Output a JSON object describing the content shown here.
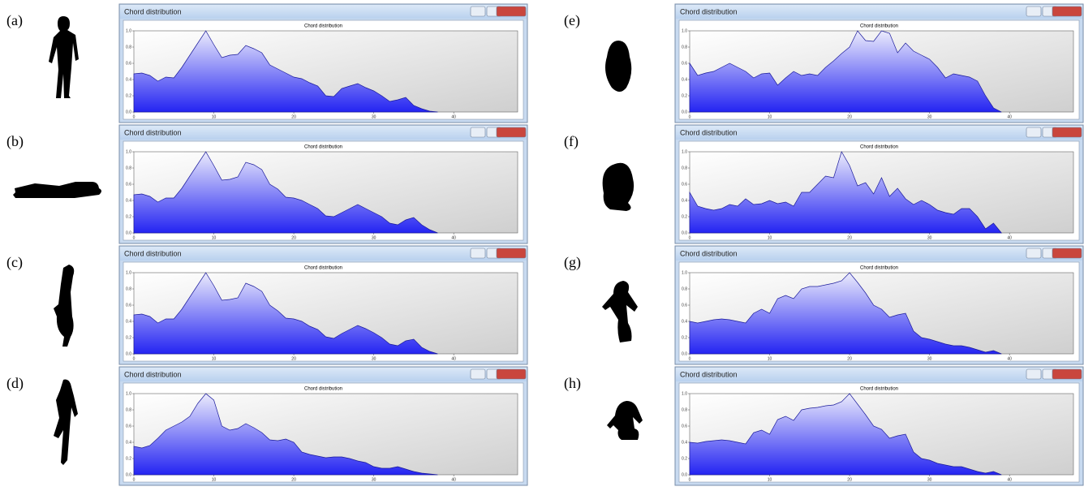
{
  "chart_data": [
    {
      "type": "area",
      "panel_label": "(a)",
      "window_title": "Chord distribution",
      "title": "Chord distribution",
      "color": "#2424f2",
      "x": [
        0,
        1,
        2,
        3,
        4,
        5,
        6,
        7,
        8,
        9,
        10,
        11,
        12,
        13,
        14,
        15,
        16,
        17,
        18,
        19,
        20,
        21,
        22,
        23,
        24,
        25,
        26,
        27,
        28,
        29,
        30,
        31,
        32,
        33,
        34,
        35,
        36,
        37,
        38
      ],
      "values": [
        0.47,
        0.48,
        0.45,
        0.38,
        0.43,
        0.42,
        0.55,
        0.7,
        0.85,
        1.0,
        0.83,
        0.67,
        0.7,
        0.71,
        0.82,
        0.78,
        0.73,
        0.58,
        0.53,
        0.48,
        0.43,
        0.41,
        0.36,
        0.32,
        0.2,
        0.19,
        0.29,
        0.32,
        0.35,
        0.3,
        0.26,
        0.2,
        0.13,
        0.15,
        0.18,
        0.08,
        0.04,
        0.01,
        0
      ],
      "xlim": [
        0,
        48
      ],
      "ylim": [
        0,
        1
      ],
      "xticks": [
        0,
        10,
        20,
        30,
        40
      ],
      "yticks": [
        {
          "value": 0,
          "label": "0.0"
        },
        {
          "value": 0.2,
          "label": "0.2"
        },
        {
          "value": 0.4,
          "label": "0.4"
        },
        {
          "value": 0.6,
          "label": "0.6"
        },
        {
          "value": 0.8,
          "label": "0.8"
        },
        {
          "value": 1,
          "label": "1.0"
        }
      ]
    },
    {
      "type": "area",
      "panel_label": "(b)",
      "window_title": "Chord distribution",
      "title": "Chord distribution",
      "color": "#2424f2",
      "x": [
        0,
        1,
        2,
        3,
        4,
        5,
        6,
        7,
        8,
        9,
        10,
        11,
        12,
        13,
        14,
        15,
        16,
        17,
        18,
        19,
        20,
        21,
        22,
        23,
        24,
        25,
        26,
        27,
        28,
        29,
        30,
        31,
        32,
        33,
        34,
        35,
        36,
        37,
        38
      ],
      "values": [
        0.47,
        0.48,
        0.45,
        0.38,
        0.43,
        0.43,
        0.55,
        0.7,
        0.85,
        1.0,
        0.83,
        0.65,
        0.66,
        0.69,
        0.87,
        0.84,
        0.78,
        0.6,
        0.54,
        0.44,
        0.43,
        0.4,
        0.35,
        0.3,
        0.21,
        0.2,
        0.25,
        0.3,
        0.35,
        0.3,
        0.25,
        0.2,
        0.12,
        0.1,
        0.16,
        0.19,
        0.1,
        0.04,
        0
      ],
      "xlim": [
        0,
        48
      ],
      "ylim": [
        0,
        1
      ],
      "xticks": [
        0,
        10,
        20,
        30,
        40
      ],
      "yticks": [
        {
          "value": 0,
          "label": "0.0"
        },
        {
          "value": 0.2,
          "label": "0.2"
        },
        {
          "value": 0.4,
          "label": "0.4"
        },
        {
          "value": 0.6,
          "label": "0.6"
        },
        {
          "value": 0.8,
          "label": "0.8"
        },
        {
          "value": 1,
          "label": "1.0"
        }
      ]
    },
    {
      "type": "area",
      "panel_label": "(c)",
      "window_title": "Chord distribution",
      "title": "Chord distribution",
      "color": "#2424f2",
      "x": [
        0,
        1,
        2,
        3,
        4,
        5,
        6,
        7,
        8,
        9,
        10,
        11,
        12,
        13,
        14,
        15,
        16,
        17,
        18,
        19,
        20,
        21,
        22,
        23,
        24,
        25,
        26,
        27,
        28,
        29,
        30,
        31,
        32,
        33,
        34,
        35,
        36,
        37,
        38
      ],
      "values": [
        0.48,
        0.49,
        0.46,
        0.38,
        0.43,
        0.43,
        0.55,
        0.7,
        0.85,
        1.0,
        0.84,
        0.66,
        0.67,
        0.69,
        0.87,
        0.83,
        0.77,
        0.6,
        0.53,
        0.44,
        0.43,
        0.4,
        0.34,
        0.3,
        0.21,
        0.19,
        0.25,
        0.3,
        0.35,
        0.31,
        0.26,
        0.2,
        0.12,
        0.1,
        0.16,
        0.18,
        0.08,
        0.03,
        0
      ],
      "xlim": [
        0,
        48
      ],
      "ylim": [
        0,
        1
      ],
      "xticks": [
        0,
        10,
        20,
        30,
        40
      ],
      "yticks": [
        {
          "value": 0,
          "label": "0.0"
        },
        {
          "value": 0.2,
          "label": "0.2"
        },
        {
          "value": 0.4,
          "label": "0.4"
        },
        {
          "value": 0.6,
          "label": "0.6"
        },
        {
          "value": 0.8,
          "label": "0.8"
        },
        {
          "value": 1,
          "label": "1.0"
        }
      ]
    },
    {
      "type": "area",
      "panel_label": "(d)",
      "window_title": "Chord distribution",
      "title": "Chord distribution",
      "color": "#2424f2",
      "x": [
        0,
        1,
        2,
        3,
        4,
        5,
        6,
        7,
        8,
        9,
        10,
        11,
        12,
        13,
        14,
        15,
        16,
        17,
        18,
        19,
        20,
        21,
        22,
        23,
        24,
        25,
        26,
        27,
        28,
        29,
        30,
        31,
        32,
        33,
        34,
        35,
        36,
        37,
        38
      ],
      "values": [
        0.35,
        0.33,
        0.36,
        0.45,
        0.55,
        0.6,
        0.65,
        0.72,
        0.88,
        1.0,
        0.92,
        0.6,
        0.55,
        0.57,
        0.63,
        0.58,
        0.52,
        0.43,
        0.42,
        0.44,
        0.4,
        0.28,
        0.25,
        0.23,
        0.21,
        0.22,
        0.22,
        0.2,
        0.17,
        0.15,
        0.1,
        0.08,
        0.08,
        0.1,
        0.07,
        0.04,
        0.02,
        0.01,
        0
      ],
      "xlim": [
        0,
        48
      ],
      "ylim": [
        0,
        1
      ],
      "xticks": [
        0,
        10,
        20,
        30,
        40
      ],
      "yticks": [
        {
          "value": 0,
          "label": "0.0"
        },
        {
          "value": 0.2,
          "label": "0.2"
        },
        {
          "value": 0.4,
          "label": "0.4"
        },
        {
          "value": 0.6,
          "label": "0.6"
        },
        {
          "value": 0.8,
          "label": "0.8"
        },
        {
          "value": 1,
          "label": "1.0"
        }
      ]
    },
    {
      "type": "area",
      "panel_label": "(e)",
      "window_title": "Chord distribution",
      "title": "Chord distribution",
      "color": "#2424f2",
      "x": [
        0,
        1,
        2,
        3,
        4,
        5,
        6,
        7,
        8,
        9,
        10,
        11,
        12,
        13,
        14,
        15,
        16,
        17,
        18,
        19,
        20,
        21,
        22,
        23,
        24,
        25,
        26,
        27,
        28,
        29,
        30,
        31,
        32,
        33,
        34,
        35,
        36,
        37,
        38,
        39
      ],
      "values": [
        0.6,
        0.45,
        0.48,
        0.5,
        0.55,
        0.6,
        0.55,
        0.5,
        0.42,
        0.47,
        0.48,
        0.33,
        0.42,
        0.5,
        0.45,
        0.47,
        0.45,
        0.55,
        0.63,
        0.72,
        0.8,
        1.0,
        0.88,
        0.87,
        1.0,
        0.97,
        0.73,
        0.85,
        0.75,
        0.7,
        0.65,
        0.55,
        0.42,
        0.47,
        0.45,
        0.43,
        0.38,
        0.2,
        0.05,
        0
      ],
      "xlim": [
        0,
        48
      ],
      "ylim": [
        0,
        1
      ],
      "xticks": [
        0,
        10,
        20,
        30,
        40
      ],
      "yticks": [
        {
          "value": 0,
          "label": "0.0"
        },
        {
          "value": 0.2,
          "label": "0.2"
        },
        {
          "value": 0.4,
          "label": "0.4"
        },
        {
          "value": 0.6,
          "label": "0.6"
        },
        {
          "value": 0.8,
          "label": "0.8"
        },
        {
          "value": 1,
          "label": "1.0"
        }
      ]
    },
    {
      "type": "area",
      "panel_label": "(f)",
      "window_title": "Chord distribution",
      "title": "Chord distribution",
      "color": "#2424f2",
      "x": [
        0,
        1,
        2,
        3,
        4,
        5,
        6,
        7,
        8,
        9,
        10,
        11,
        12,
        13,
        14,
        15,
        16,
        17,
        18,
        19,
        20,
        21,
        22,
        23,
        24,
        25,
        26,
        27,
        28,
        29,
        30,
        31,
        32,
        33,
        34,
        35,
        36,
        37,
        38,
        39
      ],
      "values": [
        0.5,
        0.33,
        0.3,
        0.28,
        0.3,
        0.35,
        0.33,
        0.42,
        0.35,
        0.36,
        0.4,
        0.36,
        0.38,
        0.33,
        0.5,
        0.5,
        0.6,
        0.7,
        0.68,
        1.0,
        0.83,
        0.58,
        0.62,
        0.48,
        0.68,
        0.45,
        0.55,
        0.42,
        0.35,
        0.4,
        0.35,
        0.28,
        0.25,
        0.23,
        0.3,
        0.3,
        0.2,
        0.05,
        0.12,
        0
      ],
      "xlim": [
        0,
        48
      ],
      "ylim": [
        0,
        1
      ],
      "xticks": [
        0,
        10,
        20,
        30,
        40
      ],
      "yticks": [
        {
          "value": 0,
          "label": "0.0"
        },
        {
          "value": 0.2,
          "label": "0.2"
        },
        {
          "value": 0.4,
          "label": "0.4"
        },
        {
          "value": 0.6,
          "label": "0.6"
        },
        {
          "value": 0.8,
          "label": "0.8"
        },
        {
          "value": 1,
          "label": "1.0"
        }
      ]
    },
    {
      "type": "area",
      "panel_label": "(g)",
      "window_title": "Chord distribution",
      "title": "Chord distribution",
      "color": "#2424f2",
      "x": [
        0,
        1,
        2,
        3,
        4,
        5,
        6,
        7,
        8,
        9,
        10,
        11,
        12,
        13,
        14,
        15,
        16,
        17,
        18,
        19,
        20,
        21,
        22,
        23,
        24,
        25,
        26,
        27,
        28,
        29,
        30,
        31,
        32,
        33,
        34,
        35,
        36,
        37,
        38,
        39
      ],
      "values": [
        0.4,
        0.38,
        0.4,
        0.42,
        0.43,
        0.42,
        0.4,
        0.38,
        0.5,
        0.55,
        0.5,
        0.68,
        0.72,
        0.68,
        0.8,
        0.83,
        0.83,
        0.85,
        0.87,
        0.9,
        1.0,
        0.88,
        0.75,
        0.6,
        0.55,
        0.45,
        0.48,
        0.5,
        0.28,
        0.2,
        0.18,
        0.15,
        0.12,
        0.1,
        0.1,
        0.08,
        0.05,
        0.02,
        0.04,
        0
      ],
      "xlim": [
        0,
        48
      ],
      "ylim": [
        0,
        1
      ],
      "xticks": [
        0,
        10,
        20,
        30,
        40
      ],
      "yticks": [
        {
          "value": 0,
          "label": "0.0"
        },
        {
          "value": 0.2,
          "label": "0.2"
        },
        {
          "value": 0.4,
          "label": "0.4"
        },
        {
          "value": 0.6,
          "label": "0.6"
        },
        {
          "value": 0.8,
          "label": "0.8"
        },
        {
          "value": 1,
          "label": "1.0"
        }
      ]
    },
    {
      "type": "area",
      "panel_label": "(h)",
      "window_title": "Chord distribution",
      "title": "Chord distribution",
      "color": "#2424f2",
      "x": [
        0,
        1,
        2,
        3,
        4,
        5,
        6,
        7,
        8,
        9,
        10,
        11,
        12,
        13,
        14,
        15,
        16,
        17,
        18,
        19,
        20,
        21,
        22,
        23,
        24,
        25,
        26,
        27,
        28,
        29,
        30,
        31,
        32,
        33,
        34,
        35,
        36,
        37,
        38,
        39
      ],
      "values": [
        0.4,
        0.39,
        0.41,
        0.42,
        0.43,
        0.42,
        0.4,
        0.38,
        0.52,
        0.55,
        0.5,
        0.68,
        0.72,
        0.67,
        0.8,
        0.82,
        0.83,
        0.85,
        0.86,
        0.9,
        1.0,
        0.87,
        0.74,
        0.6,
        0.56,
        0.45,
        0.48,
        0.5,
        0.28,
        0.2,
        0.18,
        0.14,
        0.12,
        0.1,
        0.1,
        0.07,
        0.04,
        0.02,
        0.04,
        0
      ],
      "xlim": [
        0,
        48
      ],
      "ylim": [
        0,
        1
      ],
      "xticks": [
        0,
        10,
        20,
        30,
        40
      ],
      "yticks": [
        {
          "value": 0,
          "label": "0.0"
        },
        {
          "value": 0.2,
          "label": "0.2"
        },
        {
          "value": 0.4,
          "label": "0.4"
        },
        {
          "value": 0.6,
          "label": "0.6"
        },
        {
          "value": 0.8,
          "label": "0.8"
        },
        {
          "value": 1,
          "label": "1.0"
        }
      ]
    }
  ]
}
